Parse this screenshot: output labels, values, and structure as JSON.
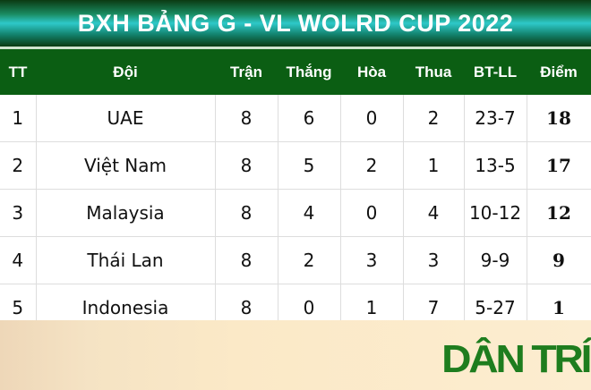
{
  "title": "BXH BẢNG G - VL WOLRD CUP 2022",
  "headers": [
    "TT",
    "Đội",
    "Trận",
    "Thắng",
    "Hòa",
    "Thua",
    "BT-LL",
    "Điểm"
  ],
  "rows": [
    [
      "1",
      "UAE",
      "8",
      "6",
      "0",
      "2",
      "23-7",
      "18"
    ],
    [
      "2",
      "Việt Nam",
      "8",
      "5",
      "2",
      "1",
      "13-5",
      "17"
    ],
    [
      "3",
      "Malaysia",
      "8",
      "4",
      "0",
      "4",
      "10-12",
      "12"
    ],
    [
      "4",
      "Thái Lan",
      "8",
      "2",
      "3",
      "3",
      "9-9",
      "9"
    ],
    [
      "5",
      "Indonesia",
      "8",
      "0",
      "1",
      "7",
      "5-27",
      "1"
    ]
  ],
  "logo": "DÂN TRÍ",
  "colors": {
    "header": "#0b5e13",
    "logo": "#1e7d1e"
  }
}
